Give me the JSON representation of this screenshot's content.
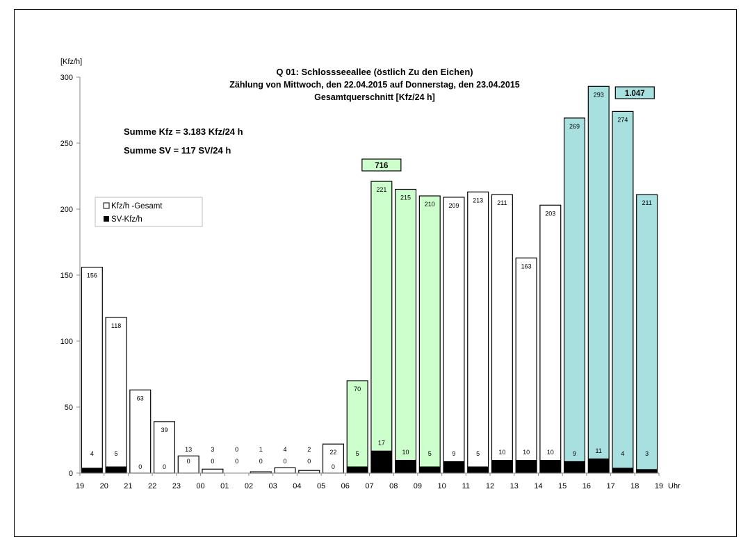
{
  "chart_data": {
    "type": "bar",
    "title": "Q 01: Schlossseeallee (östlich Zu den Eichen)",
    "subtitle": "Zählung von Mittwoch, den 22.04.2015 auf Donnerstag, den 23.04.2015",
    "subtitle2": "Gesamtquerschnitt [Kfz/24 h]",
    "ylabel": "[Kfz/h]",
    "xunit": "Uhr",
    "ylim": [
      0,
      300
    ],
    "yticks": [
      0,
      50,
      100,
      150,
      200,
      250,
      300
    ],
    "x_tick_labels": [
      "19",
      "20",
      "21",
      "22",
      "23",
      "00",
      "01",
      "02",
      "03",
      "04",
      "05",
      "06",
      "07",
      "08",
      "09",
      "10",
      "11",
      "12",
      "13",
      "14",
      "15",
      "16",
      "17",
      "18",
      "19"
    ],
    "categories": [
      "19-20",
      "20-21",
      "21-22",
      "22-23",
      "23-00",
      "00-01",
      "01-02",
      "02-03",
      "03-04",
      "04-05",
      "05-06",
      "06-07",
      "07-08",
      "08-09",
      "09-10",
      "10-11",
      "11-12",
      "12-13",
      "13-14",
      "14-15",
      "15-16",
      "16-17",
      "17-18",
      "18-19"
    ],
    "series": [
      {
        "name": "Kfz/h -Gesamt",
        "values": [
          156,
          118,
          63,
          39,
          13,
          3,
          0,
          1,
          4,
          2,
          22,
          70,
          221,
          215,
          210,
          209,
          213,
          211,
          163,
          203,
          269,
          293,
          274,
          211
        ]
      },
      {
        "name": "SV-Kfz/h",
        "values": [
          4,
          5,
          0,
          0,
          0,
          0,
          0,
          0,
          0,
          0,
          0,
          5,
          17,
          10,
          5,
          9,
          5,
          10,
          10,
          10,
          9,
          11,
          4,
          3
        ]
      }
    ],
    "peak_periods": [
      {
        "label": "716",
        "start_index": 11,
        "end_index": 14,
        "color": "#ccffcc"
      },
      {
        "label": "1.047",
        "start_index": 20,
        "end_index": 23,
        "color": "#a8e0e0"
      }
    ],
    "annotations": [
      "Summe Kfz = 3.183 Kfz/24 h",
      "Summe SV = 117 SV/24 h"
    ],
    "legend_placement": "left",
    "colors": {
      "total_bar": "#ffffff",
      "sv_bar": "#000000",
      "morning_peak": "#ccffcc",
      "evening_peak": "#a8e0e0"
    }
  }
}
